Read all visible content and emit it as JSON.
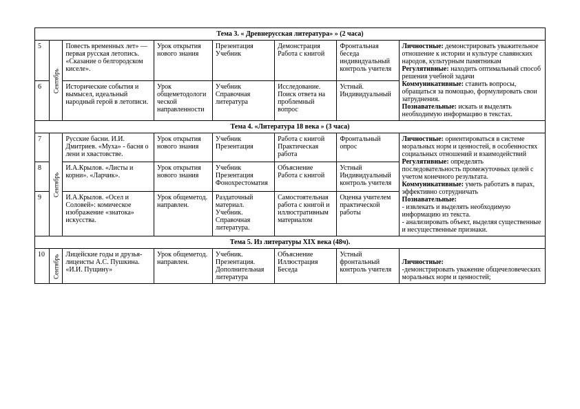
{
  "section3": {
    "title": "Тема 3. « Древнерусская литература» » (2 часа)"
  },
  "section4": {
    "title": "Тема 4. «Литература 18 века » (3 часа)"
  },
  "section5": {
    "title": "Тема 5. Из литературы XIX века (48ч)."
  },
  "month_sep": "Сентябрь",
  "r5": {
    "num": "5",
    "topic": "Повесть временных лет» — первая русская летопись. «Сказание о белгородском киселе».",
    "type": "Урок открытия нового знания",
    "materials": "Презентация Учебник",
    "activity": "Демонстрация Работа с книгой",
    "control": "Фронтальная беседа индивидуальный контроль учителя"
  },
  "r6": {
    "num": "6",
    "topic": "Исторические события и вымысел, идеальный народный герой в летописи.",
    "type": "Урок общеметодологической направленности",
    "materials": "Учебник Справочная литература",
    "activity": "Исследование. Поиск ответа на проблемный вопрос",
    "control": "Устный. Индивидуальный"
  },
  "goals3": {
    "l_label": "Личностные:",
    "l": " демонстрировать уважительное отношение к истории и культуре славянских народов, культурным памятникам",
    "r_label": "Регулятивные:",
    "r": " находить оптимальный способ решения учебной задачи",
    "k_label": "Коммуникативные:",
    "k": " ставить вопросы, обращаться за помощью, формулировать свои затруднения.",
    "p_label": "Познавательные:",
    "p": " искать и выделять необходимую информацию в текстах."
  },
  "r7": {
    "num": "7",
    "topic": "Русские басни. И.И. Дмитриев. «Муха» - басня о лени и хвастовстве.",
    "type": "Урок открытия нового знания",
    "materials": "Учебник Презентация",
    "activity": "Работа с книгой Практическая работа",
    "control": "Фронтальный опрос"
  },
  "r8": {
    "num": "8",
    "topic": "И.А.Крылов. «Листы и корни». «Ларчик».",
    "type": "Урок открытия нового знания",
    "materials": "Учебник Презентация Фонохрестоматия",
    "activity": "Объяснение Работа с книгой",
    "control": "Устный Индивидуальный контроль учителя"
  },
  "r9": {
    "num": "9",
    "topic": "И.А.Крылов. «Осел и Соловей»: комическое изображение «знатока» искусства.",
    "type": "Урок общеметод. направлен.",
    "materials": "Раздаточный материал. Учебник. Справочная литература.",
    "activity": "Самостоятельная работа с книгой и иллюстративным материалом",
    "control": "Оценка учителем практической работы"
  },
  "goals4": {
    "l_label": "Личностные:",
    "l": " ориентироваться в системе моральных норм и ценностей, в особенностях социальных отношений и взаимодействий",
    "r_label": "Регулятивные:",
    "r": " определять последовательность промежуточных целей с учетом конечного результата.",
    "k_label": "Коммуникативные:",
    "k": "  уметь работать в парах, эффективно сотрудничать",
    "p_label": "Познавательные:",
    "p1": "- извлекать и выделять необходимую информацию из текста.",
    "p2": "- анализировать объект, выделяя существенные и несущественные признаки."
  },
  "r10": {
    "num": "10",
    "topic": "Лицейские годы и друзья-лицеисты А.С. Пушкина. «И.И. Пущину»",
    "type": "Урок общеметод. направлен.",
    "materials": "Учебник. Презентация. Дополнительная литература",
    "activity": "Объяснение Иллюстрация Беседа",
    "control": "Устный фронтальный контроль учителя"
  },
  "goals5": {
    "l_label": "Личностные:",
    "l": "-демонстрировать уважение общечеловеческих моральных норм и ценностей;"
  }
}
